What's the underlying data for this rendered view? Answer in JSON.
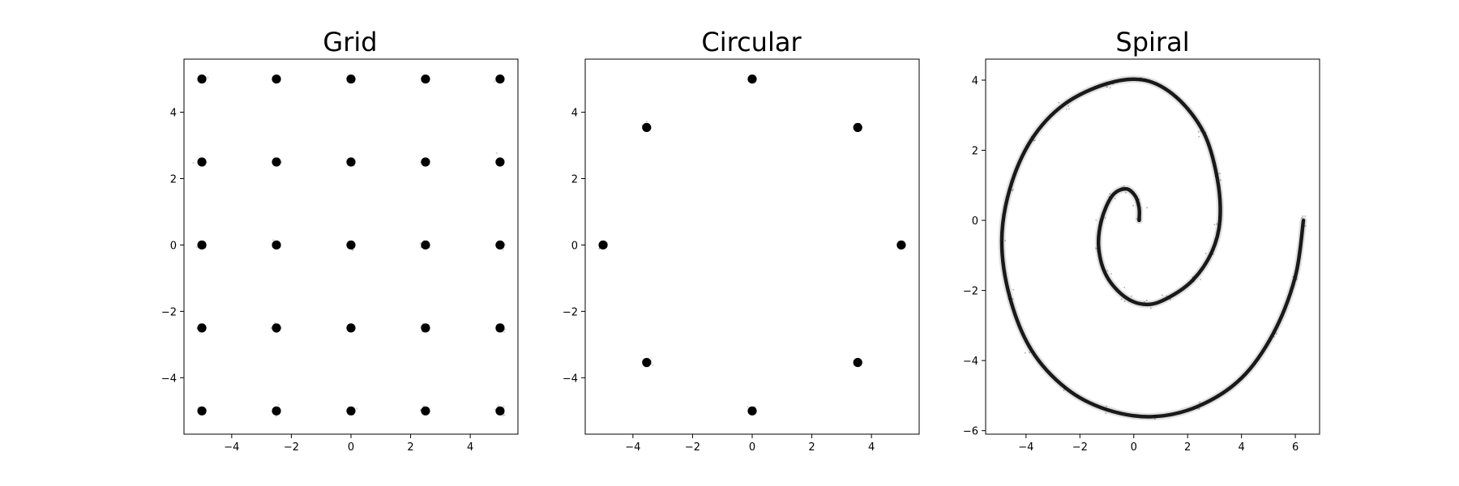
{
  "chart_data": [
    {
      "type": "scatter",
      "title": "Grid",
      "xlabel": "",
      "ylabel": "",
      "xlim": [
        -5.6,
        5.6
      ],
      "ylim": [
        -5.7,
        5.6
      ],
      "xticks": [
        -4,
        -2,
        0,
        2,
        4
      ],
      "yticks": [
        -4,
        -2,
        0,
        2,
        4
      ],
      "pattern": "clusters",
      "marker_color": "#000000",
      "grid": false,
      "points": [
        [
          -5,
          5
        ],
        [
          -2.5,
          5
        ],
        [
          0,
          5
        ],
        [
          2.5,
          5
        ],
        [
          5,
          5
        ],
        [
          -5,
          2.5
        ],
        [
          -2.5,
          2.5
        ],
        [
          0,
          2.5
        ],
        [
          2.5,
          2.5
        ],
        [
          5,
          2.5
        ],
        [
          -5,
          0
        ],
        [
          -2.5,
          0
        ],
        [
          0,
          0
        ],
        [
          2.5,
          0
        ],
        [
          5,
          0
        ],
        [
          -5,
          -2.5
        ],
        [
          -2.5,
          -2.5
        ],
        [
          0,
          -2.5
        ],
        [
          2.5,
          -2.5
        ],
        [
          5,
          -2.5
        ],
        [
          -5,
          -5
        ],
        [
          -2.5,
          -5
        ],
        [
          0,
          -5
        ],
        [
          2.5,
          -5
        ],
        [
          5,
          -5
        ]
      ]
    },
    {
      "type": "scatter",
      "title": "Circular",
      "xlabel": "",
      "ylabel": "",
      "xlim": [
        -5.6,
        5.6
      ],
      "ylim": [
        -5.7,
        5.6
      ],
      "xticks": [
        -4,
        -2,
        0,
        2,
        4
      ],
      "yticks": [
        -4,
        -2,
        0,
        2,
        4
      ],
      "pattern": "clusters",
      "marker_color": "#000000",
      "grid": false,
      "points": [
        [
          5,
          0
        ],
        [
          3.54,
          3.54
        ],
        [
          0,
          5
        ],
        [
          -3.54,
          3.54
        ],
        [
          -5,
          0
        ],
        [
          -3.54,
          -3.54
        ],
        [
          0,
          -5
        ],
        [
          3.54,
          -3.54
        ]
      ]
    },
    {
      "type": "scatter",
      "title": "Spiral",
      "xlabel": "",
      "ylabel": "",
      "xlim": [
        -5.5,
        6.9
      ],
      "ylim": [
        -6.1,
        4.6
      ],
      "xticks": [
        -4,
        -2,
        0,
        2,
        4,
        6
      ],
      "yticks": [
        -6,
        -4,
        -2,
        0,
        2,
        4
      ],
      "pattern": "curve",
      "marker_color": "#000000",
      "grid": false,
      "points": [
        [
          0.2,
          0.0
        ],
        [
          0.2,
          0.35
        ],
        [
          0.05,
          0.7
        ],
        [
          -0.3,
          0.9
        ],
        [
          -0.8,
          0.7
        ],
        [
          -1.2,
          0.0
        ],
        [
          -1.3,
          -0.8
        ],
        [
          -1.0,
          -1.6
        ],
        [
          -0.3,
          -2.2
        ],
        [
          0.5,
          -2.4
        ],
        [
          1.3,
          -2.2
        ],
        [
          2.2,
          -1.7
        ],
        [
          2.9,
          -0.9
        ],
        [
          3.2,
          0.0
        ],
        [
          3.1,
          1.2
        ],
        [
          2.6,
          2.5
        ],
        [
          1.6,
          3.5
        ],
        [
          0.4,
          4.0
        ],
        [
          -1.0,
          3.9
        ],
        [
          -2.6,
          3.3
        ],
        [
          -3.8,
          2.3
        ],
        [
          -4.6,
          0.9
        ],
        [
          -4.9,
          -0.6
        ],
        [
          -4.6,
          -2.2
        ],
        [
          -3.8,
          -3.7
        ],
        [
          -2.5,
          -4.8
        ],
        [
          -1.0,
          -5.4
        ],
        [
          0.7,
          -5.6
        ],
        [
          2.4,
          -5.3
        ],
        [
          4.0,
          -4.5
        ],
        [
          5.2,
          -3.2
        ],
        [
          6.0,
          -1.6
        ],
        [
          6.3,
          0.0
        ]
      ]
    }
  ]
}
